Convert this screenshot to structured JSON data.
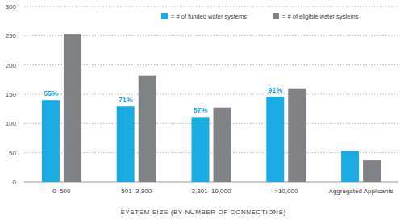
{
  "chart_data": {
    "type": "bar",
    "x_label": "SYSTEM SIZE (BY NUMBER OF CONNECTIONS)",
    "categories": [
      "0–500",
      "501–3,300",
      "3,301–10,000",
      ">10,000",
      "Aggregated Applicants"
    ],
    "series": [
      {
        "name": "= # of funded water systems",
        "color": "#1aabe3",
        "values": [
          140,
          129,
          111,
          146,
          53
        ]
      },
      {
        "name": "= # of eligible water systems",
        "color": "#808285",
        "values": [
          253,
          182,
          127,
          160,
          37
        ]
      }
    ],
    "annotations": [
      {
        "x": "0–500",
        "text": "55%"
      },
      {
        "x": "501–3,300",
        "text": "71%"
      },
      {
        "x": "3,301–10,000",
        "text": "87%"
      },
      {
        "x": ">10,000",
        "text": "91%"
      }
    ],
    "ylim": [
      0,
      300
    ],
    "yticks": [
      0,
      50,
      100,
      150,
      200,
      250,
      300
    ],
    "grid": true,
    "legend": "top"
  }
}
